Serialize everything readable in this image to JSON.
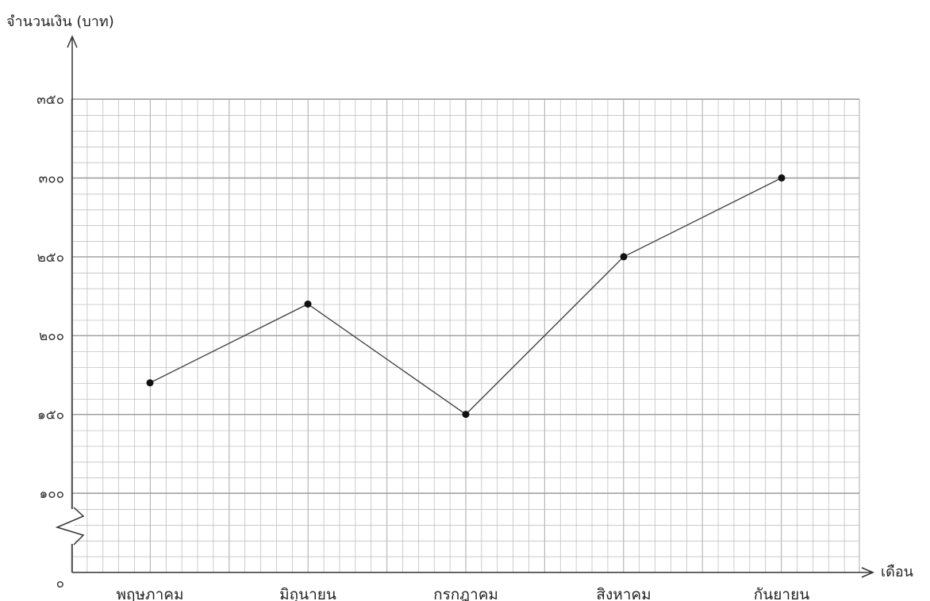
{
  "chart_data": {
    "type": "line",
    "title": "",
    "ylabel": "จำนวนเงิน (บาท)",
    "xlabel": "เดือน",
    "categories": [
      "พฤษภาคม",
      "มิถุนายน",
      "กรกฎาคม",
      "สิงหาคม",
      "กันยายน"
    ],
    "series": [
      {
        "values": [
          170,
          220,
          150,
          250,
          300
        ]
      }
    ],
    "y_ticks": [
      {
        "value": 0,
        "label": "๐"
      },
      {
        "value": 100,
        "label": "๑๐๐"
      },
      {
        "value": 150,
        "label": "๑๕๐"
      },
      {
        "value": 200,
        "label": "๒๐๐"
      },
      {
        "value": 250,
        "label": "๒๕๐"
      },
      {
        "value": 300,
        "label": "๓๐๐"
      },
      {
        "value": 350,
        "label": "๓๕๐"
      }
    ],
    "ylim": [
      0,
      350
    ],
    "axis_break": "between 0 and 100",
    "grid": true,
    "minor_grid_step": 10,
    "colors": {
      "grid": "#b8b8b8",
      "axis": "#333333",
      "line": "#444444",
      "marker": "#111111"
    }
  }
}
